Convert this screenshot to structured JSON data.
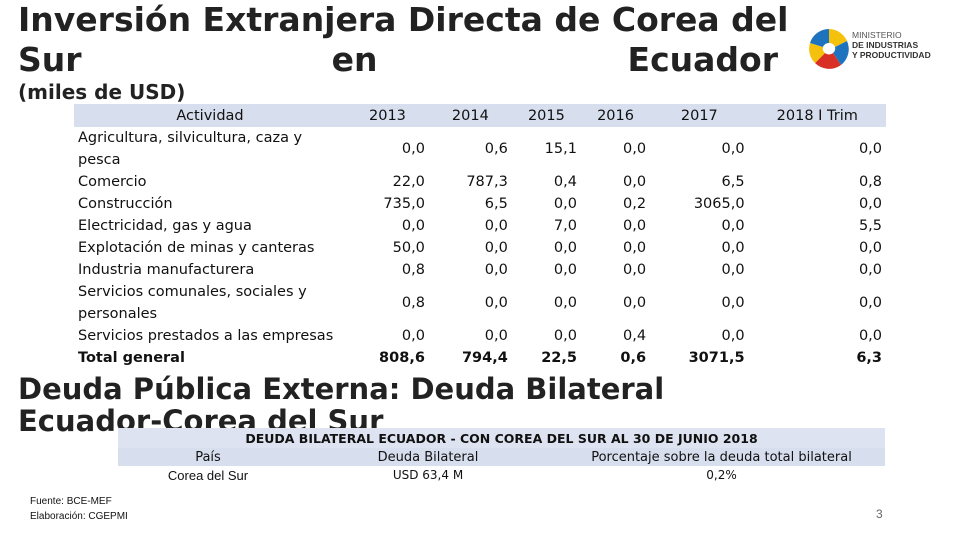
{
  "title": {
    "line1": "Inversión Extranjera Directa de Corea del",
    "line2_words": [
      "Sur",
      "en",
      "Ecuador"
    ]
  },
  "subtitle": "(miles de USD)",
  "logo": {
    "lines": [
      "MINISTERIO",
      "DE INDUSTRIAS",
      "Y PRODUCTIVIDAD"
    ],
    "colors": [
      "#f4c20d",
      "#1e73be",
      "#d93025"
    ]
  },
  "fdi_table": {
    "columns": [
      "Actividad",
      "2013",
      "2014",
      "2015",
      "2016",
      "2017",
      "2018 I Trim"
    ],
    "rows": [
      {
        "activity": "Agricultura, silvicultura, caza y pesca",
        "values": [
          "0,0",
          "0,6",
          "15,1",
          "0,0",
          "0,0",
          "0,0"
        ]
      },
      {
        "activity": "Comercio",
        "values": [
          "22,0",
          "787,3",
          "0,4",
          "0,0",
          "6,5",
          "0,8"
        ]
      },
      {
        "activity": "Construcción",
        "values": [
          "735,0",
          "6,5",
          "0,0",
          "0,2",
          "3065,0",
          "0,0"
        ]
      },
      {
        "activity": "Electricidad, gas y agua",
        "values": [
          "0,0",
          "0,0",
          "7,0",
          "0,0",
          "0,0",
          "5,5"
        ]
      },
      {
        "activity": "Explotación de minas y canteras",
        "values": [
          "50,0",
          "0,0",
          "0,0",
          "0,0",
          "0,0",
          "0,0"
        ]
      },
      {
        "activity": "Industria manufacturera",
        "values": [
          "0,8",
          "0,0",
          "0,0",
          "0,0",
          "0,0",
          "0,0"
        ]
      },
      {
        "activity": "Servicios comunales, sociales y personales",
        "values": [
          "0,8",
          "0,0",
          "0,0",
          "0,0",
          "0,0",
          "0,0"
        ]
      },
      {
        "activity": "Servicios prestados a las empresas",
        "values": [
          "0,0",
          "0,0",
          "0,0",
          "0,4",
          "0,0",
          "0,0"
        ]
      }
    ],
    "total": {
      "activity": "Total general",
      "values": [
        "808,6",
        "794,4",
        "22,5",
        "0,6",
        "3071,5",
        "6,3"
      ]
    }
  },
  "debt_heading": "Deuda Pública Externa: Deuda Bilateral Ecuador-Corea del Sur",
  "debt_table": {
    "caption": "DEUDA BILATERAL ECUADOR - CON COREA DEL SUR AL 30 DE JUNIO 2018",
    "columns": [
      "País",
      "Deuda Bilateral",
      "Porcentaje sobre la deuda total bilateral"
    ],
    "row": [
      "Corea del Sur",
      "USD 63,4 M",
      "0,2%"
    ]
  },
  "source": [
    "Fuente: BCE-MEF",
    "Elaboración: CGEPMI"
  ],
  "page_number": "3"
}
